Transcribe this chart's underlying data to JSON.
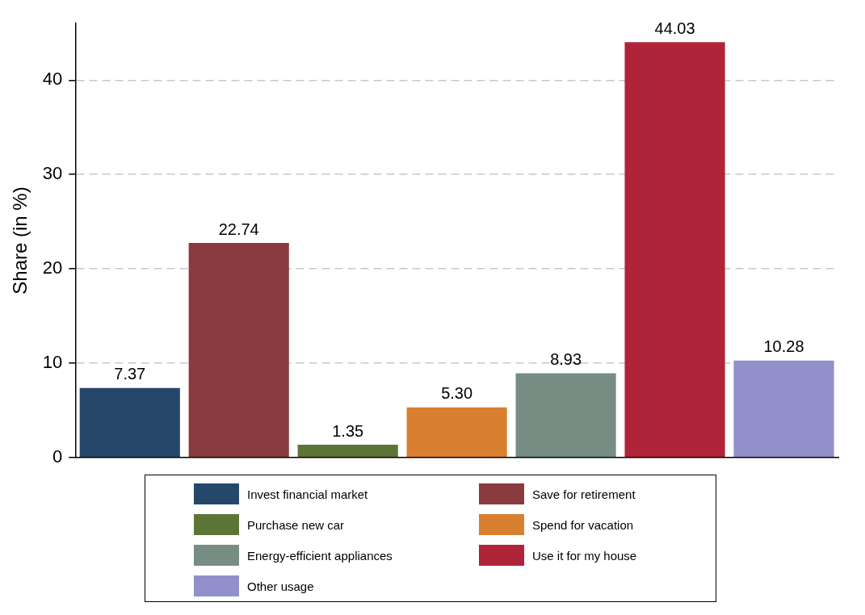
{
  "chart_data": {
    "type": "bar",
    "ylabel": "Share (in %)",
    "categories": [
      null,
      null,
      null,
      null,
      null,
      null,
      null
    ],
    "series": [
      {
        "name": "Invest financial market",
        "color": "#25476a",
        "values": [
          7.37,
          null,
          null,
          null,
          null,
          null,
          null
        ],
        "value_labels": [
          "7.37",
          null,
          null,
          null,
          null,
          null,
          null
        ]
      },
      {
        "name": "Save for retirement",
        "color": "#8a3b3f",
        "values": [
          null,
          22.74,
          null,
          null,
          null,
          null,
          null
        ],
        "value_labels": [
          null,
          "22.74",
          null,
          null,
          null,
          null,
          null
        ]
      },
      {
        "name": "Purchase new car",
        "color": "#5c7537",
        "values": [
          null,
          null,
          1.35,
          null,
          null,
          null,
          null
        ],
        "value_labels": [
          null,
          null,
          "1.35",
          null,
          null,
          null,
          null
        ]
      },
      {
        "name": "Spend for vacation",
        "color": "#d88030",
        "values": [
          null,
          null,
          null,
          5.3,
          null,
          null,
          null
        ],
        "value_labels": [
          null,
          null,
          null,
          "5.30",
          null,
          null,
          null
        ]
      },
      {
        "name": "Energy-efficient appliances",
        "color": "#778d84",
        "values": [
          null,
          null,
          null,
          null,
          8.93,
          null,
          null
        ],
        "value_labels": [
          null,
          null,
          null,
          null,
          "8.93",
          null,
          null
        ]
      },
      {
        "name": "Use it for my house",
        "color": "#b0243a",
        "values": [
          null,
          null,
          null,
          null,
          null,
          44.03,
          null
        ],
        "value_labels": [
          null,
          null,
          null,
          null,
          null,
          "44.03",
          null
        ]
      },
      {
        "name": "Other usage",
        "color": "#9190cd",
        "values": [
          null,
          null,
          null,
          null,
          null,
          null,
          10.28
        ],
        "value_labels": [
          null,
          null,
          null,
          null,
          null,
          null,
          "10.28"
        ]
      }
    ],
    "ylim": [
      0,
      46
    ],
    "yticks": [
      0,
      10,
      20,
      30,
      40
    ],
    "grid": "y",
    "legend": "bottom"
  }
}
